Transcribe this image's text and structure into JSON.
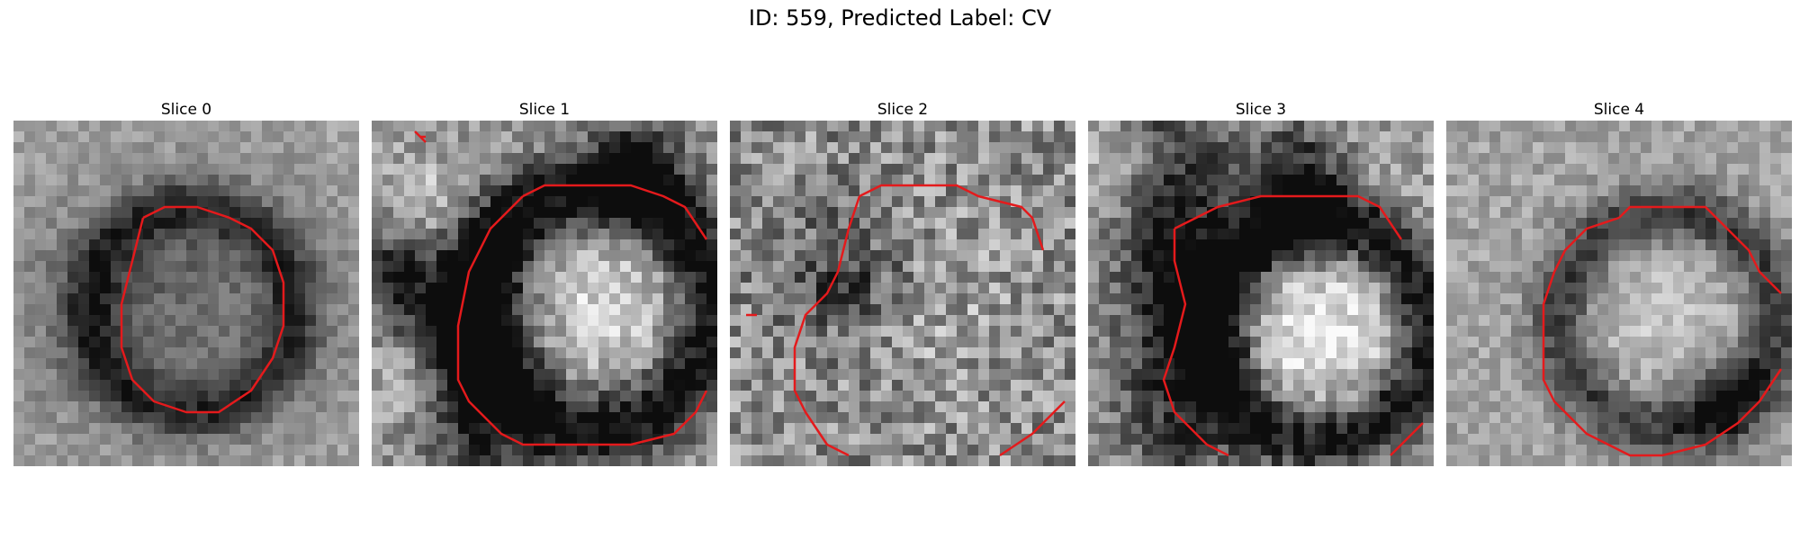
{
  "figure": {
    "title": "ID: 559, Predicted Label: CV"
  },
  "panels": [
    {
      "title": "Slice 0",
      "seed": 11,
      "base": 0.65,
      "contrast": 0.45
    },
    {
      "title": "Slice 1",
      "seed": 23,
      "base": 0.6,
      "contrast": 0.75
    },
    {
      "title": "Slice 2",
      "seed": 37,
      "base": 0.55,
      "contrast": 0.55
    },
    {
      "title": "Slice 3",
      "seed": 41,
      "base": 0.62,
      "contrast": 0.8
    },
    {
      "title": "Slice 4",
      "seed": 53,
      "base": 0.64,
      "contrast": 0.55
    }
  ],
  "colors": {
    "contour": "#e41a1c",
    "background": "#ffffff"
  }
}
